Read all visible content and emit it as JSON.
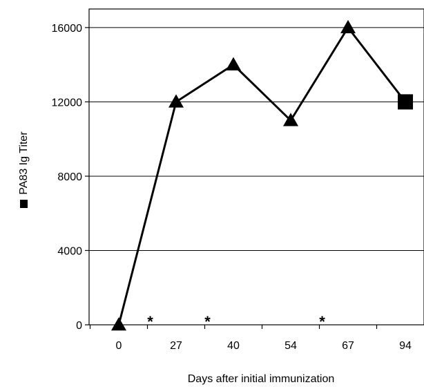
{
  "chart_data": {
    "type": "line",
    "categories": [
      "0",
      "27",
      "40",
      "54",
      "67",
      "94"
    ],
    "values": [
      0,
      12000,
      14000,
      11000,
      16000,
      12000
    ],
    "marker_shapes": [
      "triangle",
      "triangle",
      "triangle",
      "triangle",
      "triangle",
      "square"
    ],
    "title": "",
    "xlabel": "Days after initial immunization",
    "ylabel": "PA83 Ig Titer",
    "ylim": [
      0,
      17000
    ],
    "yticks": [
      "0",
      "4000",
      "8000",
      "12000",
      "16000"
    ],
    "ytick_values": [
      0,
      4000,
      8000,
      12000,
      16000
    ],
    "grid": "horizontal",
    "annotations": [
      {
        "text": "*",
        "x_between": [
          "0",
          "27"
        ]
      },
      {
        "text": "*",
        "x_between": [
          "27",
          "40"
        ]
      },
      {
        "text": "*",
        "x_between": [
          "54",
          "67"
        ]
      }
    ],
    "colors": {
      "line": "#000000",
      "marker": "#000000",
      "grid": "#000000"
    }
  }
}
